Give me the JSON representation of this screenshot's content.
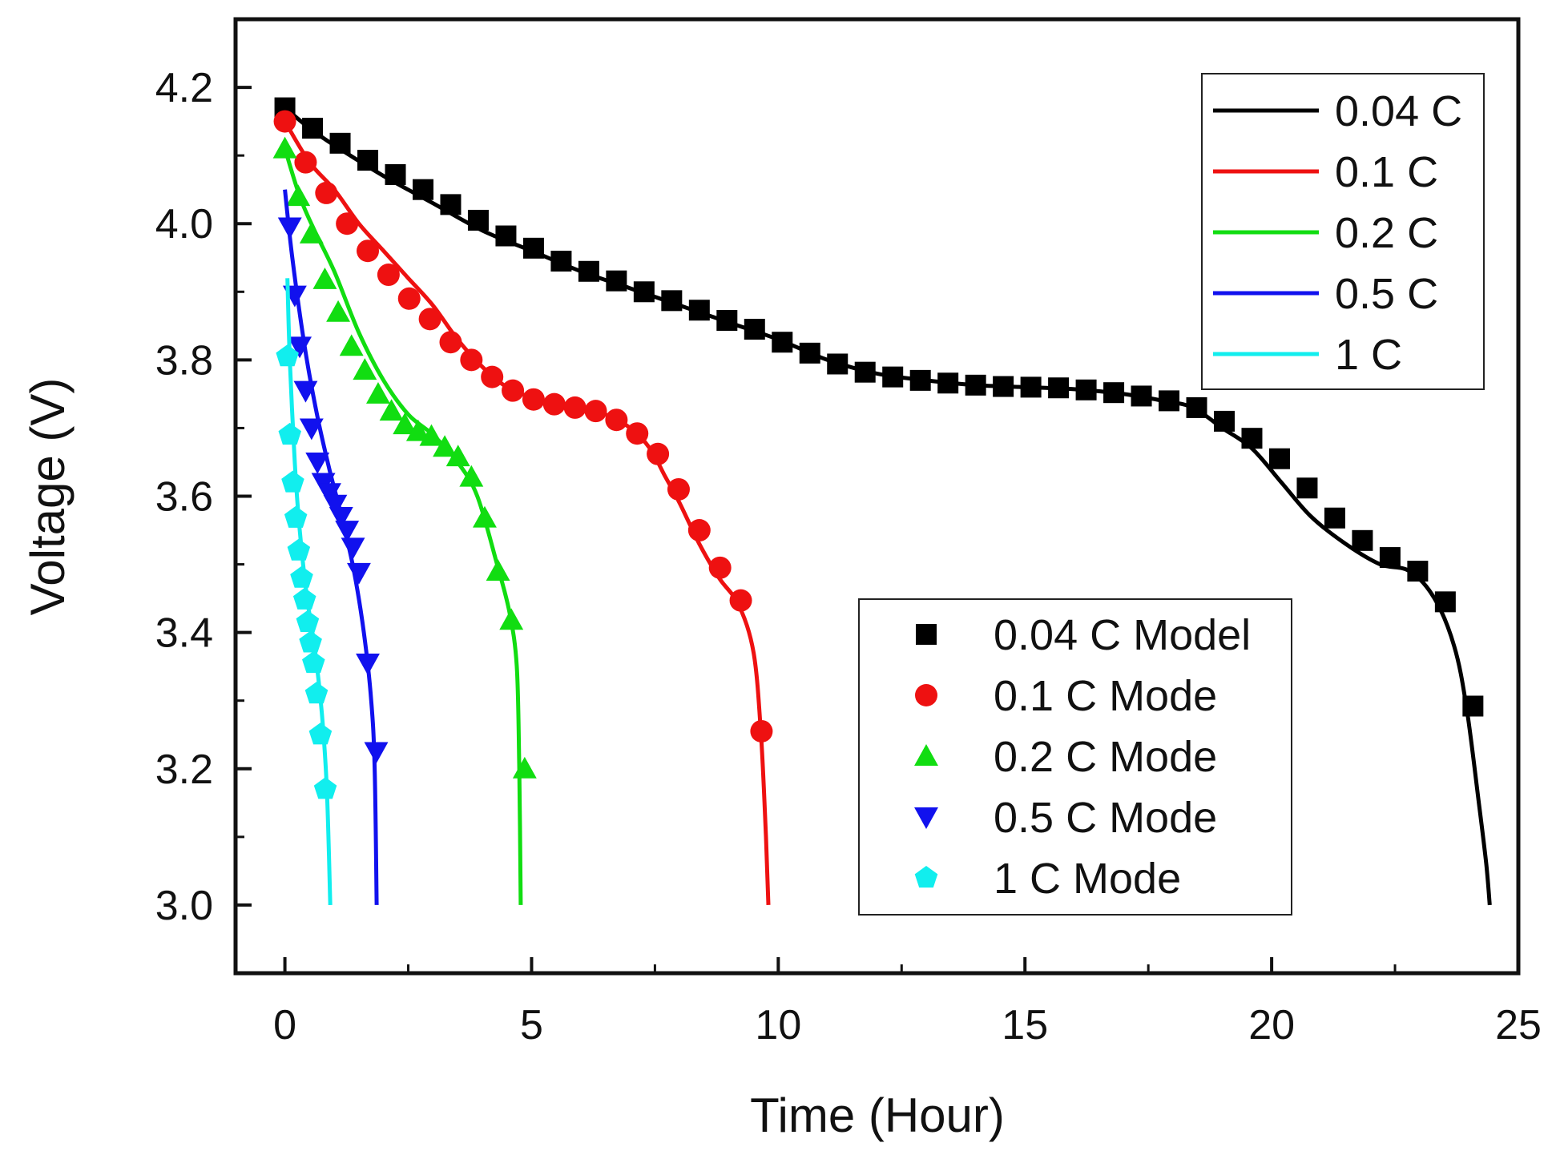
{
  "chart_data": {
    "type": "line",
    "xlabel": "Time (Hour)",
    "ylabel": "Voltage (V)",
    "xlim": [
      -1,
      25
    ],
    "ylim": [
      2.9,
      4.3
    ],
    "x_ticks": [
      0,
      5,
      10,
      15,
      20,
      25
    ],
    "x_tick_labels": [
      "0",
      "5",
      "10",
      "15",
      "20",
      "25"
    ],
    "y_ticks": [
      3.0,
      3.2,
      3.4,
      3.6,
      3.8,
      4.0,
      4.2
    ],
    "y_tick_labels": [
      "3.0",
      "3.2",
      "3.4",
      "3.6",
      "3.8",
      "4.0",
      "4.2"
    ],
    "grid": false,
    "legend_lines_position": "top-right",
    "legend_markers_position": "bottom-right",
    "series": [
      {
        "name": "0.04 C",
        "marker_label": "0.04 C Model",
        "color": "#000000",
        "marker": "square",
        "line": [
          [
            0,
            4.17
          ],
          [
            0.5,
            4.14
          ],
          [
            1,
            4.115
          ],
          [
            2,
            4.07
          ],
          [
            3,
            4.03
          ],
          [
            4,
            3.99
          ],
          [
            5,
            3.96
          ],
          [
            6,
            3.93
          ],
          [
            7,
            3.905
          ],
          [
            8,
            3.88
          ],
          [
            9,
            3.855
          ],
          [
            10,
            3.83
          ],
          [
            11,
            3.8
          ],
          [
            12,
            3.78
          ],
          [
            13,
            3.77
          ],
          [
            14,
            3.763
          ],
          [
            15,
            3.76
          ],
          [
            16,
            3.757
          ],
          [
            17,
            3.75
          ],
          [
            17.8,
            3.74
          ],
          [
            18.4,
            3.73
          ],
          [
            19,
            3.7
          ],
          [
            19.6,
            3.67
          ],
          [
            20.2,
            3.62
          ],
          [
            20.8,
            3.57
          ],
          [
            21.5,
            3.53
          ],
          [
            22.2,
            3.5
          ],
          [
            22.8,
            3.49
          ],
          [
            23.3,
            3.45
          ],
          [
            23.7,
            3.38
          ],
          [
            23.95,
            3.29
          ],
          [
            24.2,
            3.15
          ],
          [
            24.35,
            3.06
          ],
          [
            24.42,
            3.0
          ]
        ],
        "points": [
          [
            0,
            4.17
          ],
          [
            0.56,
            4.14
          ],
          [
            1.12,
            4.118
          ],
          [
            1.68,
            4.093
          ],
          [
            2.24,
            4.072
          ],
          [
            2.8,
            4.05
          ],
          [
            3.36,
            4.028
          ],
          [
            3.92,
            4.005
          ],
          [
            4.48,
            3.982
          ],
          [
            5.04,
            3.964
          ],
          [
            5.6,
            3.945
          ],
          [
            6.16,
            3.93
          ],
          [
            6.72,
            3.916
          ],
          [
            7.28,
            3.9
          ],
          [
            7.84,
            3.887
          ],
          [
            8.4,
            3.873
          ],
          [
            8.96,
            3.858
          ],
          [
            9.52,
            3.845
          ],
          [
            10.08,
            3.826
          ],
          [
            10.64,
            3.81
          ],
          [
            11.2,
            3.794
          ],
          [
            11.76,
            3.782
          ],
          [
            12.32,
            3.775
          ],
          [
            12.88,
            3.77
          ],
          [
            13.44,
            3.766
          ],
          [
            14,
            3.763
          ],
          [
            14.56,
            3.761
          ],
          [
            15.12,
            3.76
          ],
          [
            15.68,
            3.759
          ],
          [
            16.24,
            3.756
          ],
          [
            16.8,
            3.752
          ],
          [
            17.36,
            3.747
          ],
          [
            17.92,
            3.74
          ],
          [
            18.48,
            3.73
          ],
          [
            19.04,
            3.71
          ],
          [
            19.6,
            3.685
          ],
          [
            20.16,
            3.655
          ],
          [
            20.72,
            3.612
          ],
          [
            21.28,
            3.568
          ],
          [
            21.84,
            3.535
          ],
          [
            22.4,
            3.51
          ],
          [
            22.96,
            3.49
          ],
          [
            23.52,
            3.445
          ],
          [
            24.08,
            3.292
          ]
        ]
      },
      {
        "name": "0.1 C",
        "marker_label": "0.1 C Mode",
        "color": "#ee1111",
        "marker": "circle",
        "line": [
          [
            0,
            4.15
          ],
          [
            0.5,
            4.09
          ],
          [
            1,
            4.05
          ],
          [
            1.5,
            4.0
          ],
          [
            2,
            3.96
          ],
          [
            2.5,
            3.92
          ],
          [
            3,
            3.88
          ],
          [
            3.5,
            3.83
          ],
          [
            4,
            3.79
          ],
          [
            4.5,
            3.76
          ],
          [
            5,
            3.745
          ],
          [
            5.5,
            3.735
          ],
          [
            6,
            3.73
          ],
          [
            6.5,
            3.72
          ],
          [
            7,
            3.7
          ],
          [
            7.4,
            3.67
          ],
          [
            7.7,
            3.63
          ],
          [
            8,
            3.59
          ],
          [
            8.4,
            3.53
          ],
          [
            8.8,
            3.48
          ],
          [
            9.2,
            3.44
          ],
          [
            9.5,
            3.37
          ],
          [
            9.65,
            3.25
          ],
          [
            9.75,
            3.1
          ],
          [
            9.8,
            3.0
          ]
        ],
        "points": [
          [
            0,
            4.15
          ],
          [
            0.42,
            4.09
          ],
          [
            0.84,
            4.045
          ],
          [
            1.26,
            4.0
          ],
          [
            1.68,
            3.96
          ],
          [
            2.1,
            3.925
          ],
          [
            2.52,
            3.89
          ],
          [
            2.94,
            3.86
          ],
          [
            3.36,
            3.826
          ],
          [
            3.78,
            3.8
          ],
          [
            4.2,
            3.775
          ],
          [
            4.62,
            3.755
          ],
          [
            5.04,
            3.742
          ],
          [
            5.46,
            3.735
          ],
          [
            5.88,
            3.73
          ],
          [
            6.3,
            3.725
          ],
          [
            6.72,
            3.712
          ],
          [
            7.14,
            3.692
          ],
          [
            7.56,
            3.662
          ],
          [
            7.98,
            3.61
          ],
          [
            8.4,
            3.55
          ],
          [
            8.82,
            3.495
          ],
          [
            9.24,
            3.447
          ],
          [
            9.66,
            3.255
          ]
        ]
      },
      {
        "name": "0.2 C",
        "marker_label": "0.2 C Mode",
        "color": "#11dd11",
        "marker": "triangle-up",
        "line": [
          [
            0,
            4.11
          ],
          [
            0.3,
            4.04
          ],
          [
            0.6,
            3.99
          ],
          [
            1,
            3.93
          ],
          [
            1.5,
            3.84
          ],
          [
            2,
            3.77
          ],
          [
            2.5,
            3.72
          ],
          [
            3,
            3.69
          ],
          [
            3.5,
            3.65
          ],
          [
            3.9,
            3.6
          ],
          [
            4.3,
            3.5
          ],
          [
            4.55,
            3.43
          ],
          [
            4.7,
            3.35
          ],
          [
            4.75,
            3.2
          ],
          [
            4.78,
            3.0
          ]
        ],
        "points": [
          [
            0,
            4.11
          ],
          [
            0.27,
            4.04
          ],
          [
            0.54,
            3.985
          ],
          [
            0.81,
            3.918
          ],
          [
            1.08,
            3.87
          ],
          [
            1.35,
            3.82
          ],
          [
            1.62,
            3.785
          ],
          [
            1.89,
            3.75
          ],
          [
            2.16,
            3.725
          ],
          [
            2.43,
            3.705
          ],
          [
            2.7,
            3.695
          ],
          [
            2.97,
            3.688
          ],
          [
            3.24,
            3.672
          ],
          [
            3.51,
            3.658
          ],
          [
            3.78,
            3.628
          ],
          [
            4.05,
            3.568
          ],
          [
            4.32,
            3.49
          ],
          [
            4.59,
            3.418
          ],
          [
            4.86,
            3.2
          ]
        ]
      },
      {
        "name": "0.5 C",
        "marker_label": "0.5 C Mode",
        "color": "#1111ee",
        "marker": "triangle-down",
        "line": [
          [
            0,
            4.05
          ],
          [
            0.15,
            3.95
          ],
          [
            0.4,
            3.82
          ],
          [
            0.65,
            3.72
          ],
          [
            0.9,
            3.64
          ],
          [
            1.15,
            3.57
          ],
          [
            1.4,
            3.49
          ],
          [
            1.6,
            3.4
          ],
          [
            1.75,
            3.3
          ],
          [
            1.82,
            3.2
          ],
          [
            1.86,
            3.0
          ]
        ],
        "points": [
          [
            0.1,
            3.995
          ],
          [
            0.2,
            3.895
          ],
          [
            0.3,
            3.82
          ],
          [
            0.42,
            3.755
          ],
          [
            0.54,
            3.7
          ],
          [
            0.66,
            3.65
          ],
          [
            0.78,
            3.62
          ],
          [
            0.9,
            3.605
          ],
          [
            1.02,
            3.588
          ],
          [
            1.14,
            3.57
          ],
          [
            1.26,
            3.55
          ],
          [
            1.38,
            3.525
          ],
          [
            1.5,
            3.488
          ],
          [
            1.68,
            3.355
          ],
          [
            1.85,
            3.225
          ]
        ]
      },
      {
        "name": "1 C",
        "marker_label": "1 C Mode",
        "color": "#11eeee",
        "marker": "pentagon",
        "line": [
          [
            0.05,
            3.92
          ],
          [
            0.1,
            3.8
          ],
          [
            0.2,
            3.65
          ],
          [
            0.3,
            3.55
          ],
          [
            0.45,
            3.45
          ],
          [
            0.6,
            3.38
          ],
          [
            0.75,
            3.28
          ],
          [
            0.85,
            3.17
          ],
          [
            0.92,
            3.0
          ]
        ],
        "points": [
          [
            0.05,
            3.805
          ],
          [
            0.1,
            3.69
          ],
          [
            0.16,
            3.62
          ],
          [
            0.22,
            3.568
          ],
          [
            0.28,
            3.52
          ],
          [
            0.34,
            3.48
          ],
          [
            0.4,
            3.448
          ],
          [
            0.46,
            3.415
          ],
          [
            0.52,
            3.385
          ],
          [
            0.58,
            3.355
          ],
          [
            0.64,
            3.31
          ],
          [
            0.72,
            3.25
          ],
          [
            0.82,
            3.17
          ]
        ]
      }
    ]
  }
}
